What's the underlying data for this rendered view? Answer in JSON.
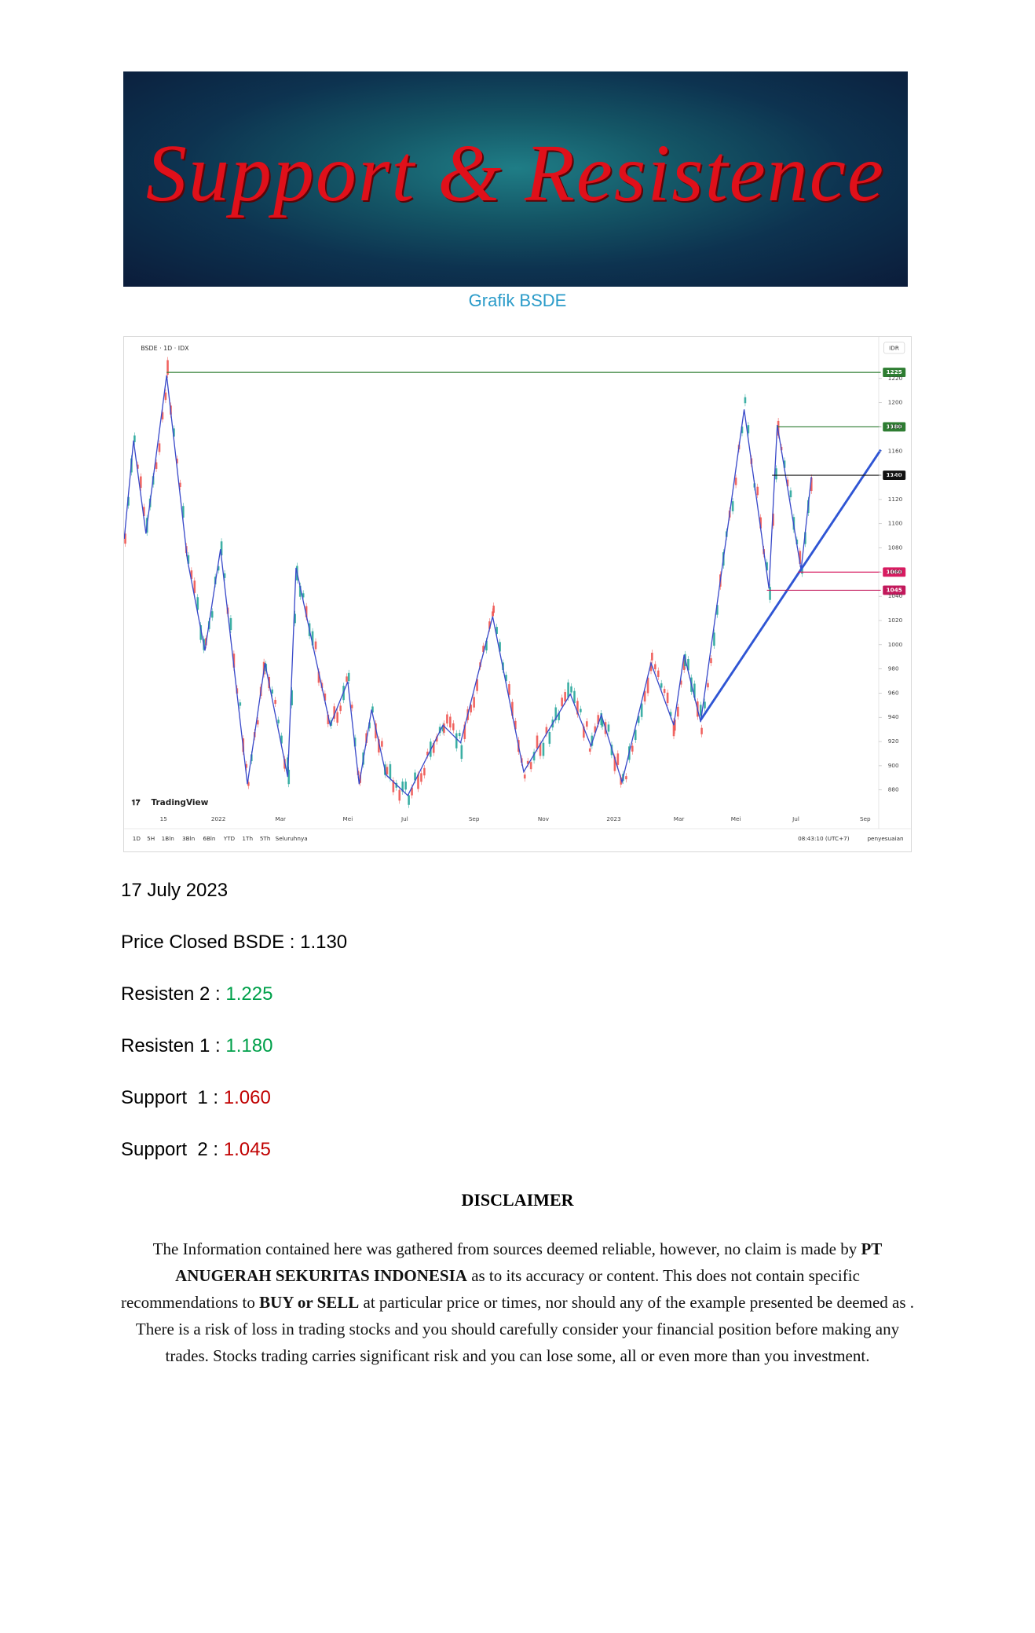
{
  "banner": {
    "title": "Support & Resistence"
  },
  "caption": "Grafik BSDE",
  "chart": {
    "symbol": "BSDE · 1D · IDX",
    "currency": "IDR",
    "logo": "TradingView",
    "ylim": [
      848,
      1250
    ],
    "yticks": [
      880,
      900,
      920,
      940,
      960,
      980,
      1000,
      1020,
      1040,
      1060,
      1080,
      1100,
      1120,
      1140,
      1160,
      1180,
      1200,
      1220
    ],
    "xlabels": [
      "15",
      "2022",
      "Mar",
      "Mei",
      "Jul",
      "Sep",
      "Nov",
      "2023",
      "Mar",
      "Mei",
      "Jul",
      "Sep"
    ],
    "levels": [
      {
        "value": 1225,
        "color": "#2e7d32"
      },
      {
        "value": 1180,
        "color": "#2e7d32"
      },
      {
        "value": 1140,
        "color": "#111111"
      },
      {
        "value": 1060,
        "color": "#d81b60"
      },
      {
        "value": 1045,
        "color": "#c2185b"
      }
    ],
    "ranges": [
      "1D",
      "5H",
      "1Bln",
      "3Bln",
      "6Bln",
      "YTD",
      "1Th",
      "5Th",
      "Seluruhnya"
    ],
    "time": "08:43:10 (UTC+7)",
    "adjust": "penyesuaian"
  },
  "date": "17 July 2023",
  "items": [
    {
      "label": "Price Closed BSDE : ",
      "value": "1.130",
      "color": "#000000"
    },
    {
      "label": "Resisten 2 : ",
      "value": "1.225",
      "color": "#00a04a"
    },
    {
      "label": "Resisten 1 : ",
      "value": "1.180",
      "color": "#00a04a"
    },
    {
      "label": "Support  1 : ",
      "value": "1.060",
      "color": "#c00000"
    },
    {
      "label": "Support  2 : ",
      "value": "1.045",
      "color": "#c00000"
    }
  ],
  "disclaimer": {
    "title": "DISCLAIMER",
    "segments": [
      {
        "text": "The Information contained here was gathered from sources deemed reliable, however, no claim is made by ",
        "bold": false
      },
      {
        "text": "PT ANUGERAH SEKURITAS INDONESIA",
        "bold": true
      },
      {
        "text": " as to its accuracy or content. This does not contain specific recommendations to ",
        "bold": false
      },
      {
        "text": "BUY or SELL",
        "bold": true
      },
      {
        "text": " at particular price or times, nor should any of the example presented be deemed as . There is a risk of loss in trading stocks and you should carefully consider your financial position before making any trades. Stocks trading carries significant risk and you can lose some, all or even more than you investment.",
        "bold": false
      }
    ]
  }
}
